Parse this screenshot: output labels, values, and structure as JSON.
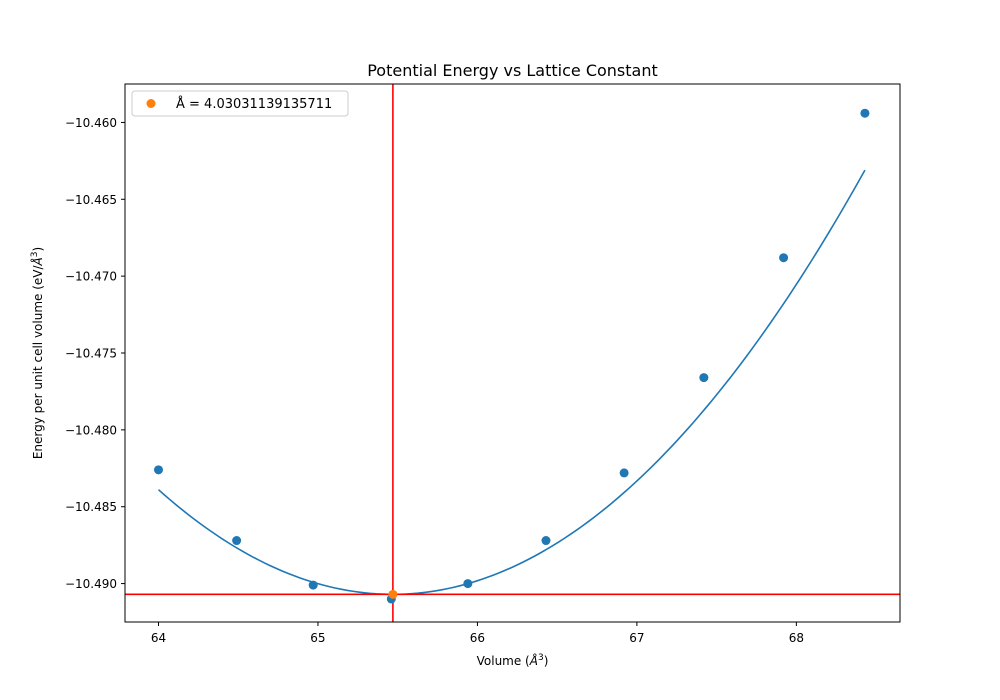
{
  "chart_data": {
    "type": "scatter",
    "title": "Potential Energy vs Lattice Constant",
    "xlabel_main": "Volume (",
    "xlabel_unit": "Å",
    "xlabel_end": ")",
    "ylabel_main": "Energy per unit cell volume (eV/",
    "ylabel_unit": "Å",
    "ylabel_end": ")",
    "xlim": [
      63.79,
      68.65
    ],
    "ylim": [
      -10.4925,
      -10.4575
    ],
    "xticks": [
      64,
      65,
      66,
      67,
      68
    ],
    "xtick_labels": [
      "64",
      "65",
      "66",
      "67",
      "68"
    ],
    "yticks": [
      -10.49,
      -10.485,
      -10.48,
      -10.475,
      -10.47,
      -10.465,
      -10.46
    ],
    "ytick_labels": [
      "−10.490",
      "−10.485",
      "−10.480",
      "−10.475",
      "−10.470",
      "−10.465",
      "−10.460"
    ],
    "grid": false,
    "legend_position": "top-left",
    "series": [
      {
        "kind": "scatter",
        "color": "#1f77b4",
        "x": [
          64.0,
          64.49,
          64.97,
          65.46,
          65.94,
          66.43,
          66.92,
          67.42,
          67.92,
          68.43
        ],
        "y": [
          -10.4826,
          -10.4872,
          -10.4901,
          -10.491,
          -10.49,
          -10.4872,
          -10.4828,
          -10.4766,
          -10.4688,
          -10.4594
        ]
      },
      {
        "kind": "fit_line",
        "color": "#1f77b4",
        "vertex_x": 65.47,
        "vertex_y": -10.4907,
        "quadratic_coef": 0.00315,
        "x_range": [
          64.0,
          68.43
        ]
      },
      {
        "kind": "minimum_marker",
        "name": "Å = 4.03031139135711",
        "color": "#ff7f0e",
        "x": 65.47,
        "y": -10.4907
      }
    ],
    "reference_lines": {
      "color": "#ff0000",
      "vertical_x": 65.47,
      "horizontal_y": -10.4907
    }
  }
}
